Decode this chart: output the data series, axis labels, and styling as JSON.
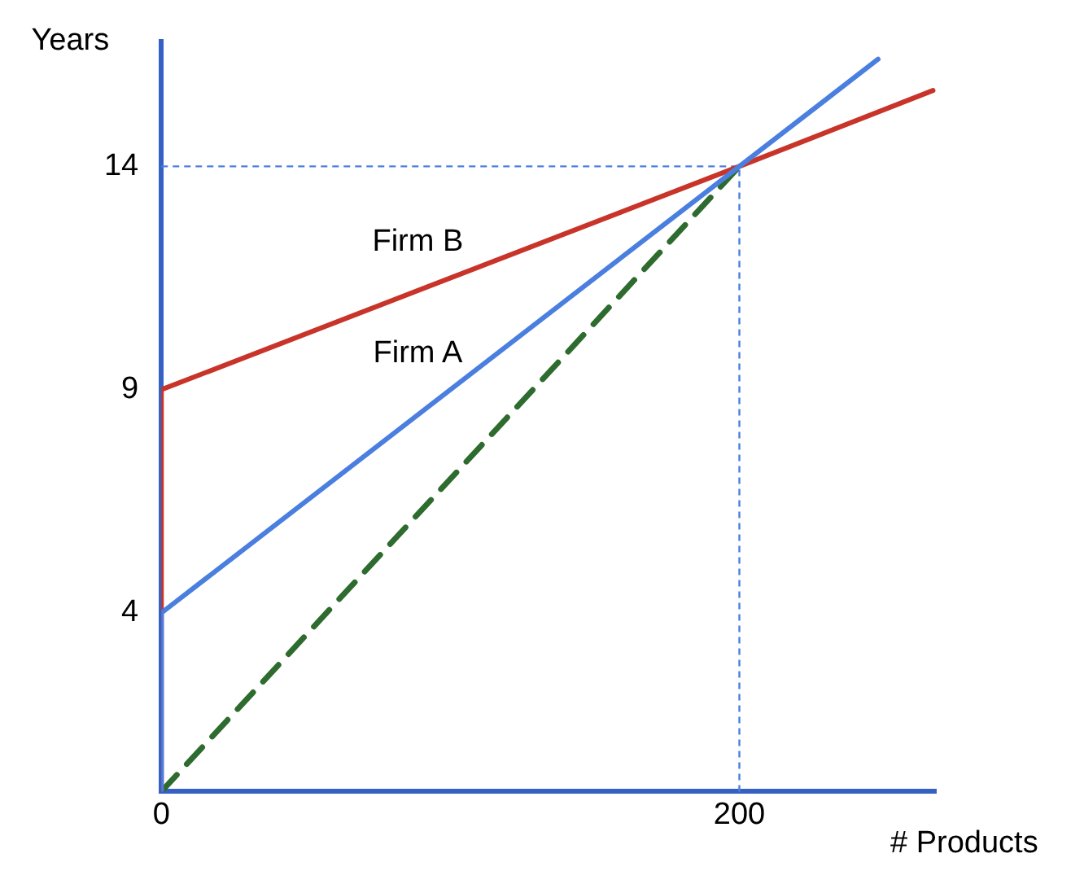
{
  "chart_data": {
    "type": "line",
    "xlabel": "# Products",
    "ylabel": "Years",
    "xlim": [
      0,
      268
    ],
    "ylim": [
      0,
      16.8
    ],
    "xticks": [
      0,
      200
    ],
    "yticks": [
      4,
      9,
      14
    ],
    "grid": false,
    "legend": false,
    "marker": "none",
    "ref_lines": [
      {
        "axis": "y",
        "value": 14,
        "color": "#4a7fe0",
        "line_style": "dashed"
      },
      {
        "axis": "x",
        "value": 200,
        "color": "#4a7fe0",
        "line_style": "dashed"
      }
    ],
    "series": [
      {
        "name": "Firm A",
        "color": "#4a7fe0",
        "x": [
          0,
          0,
          200,
          248
        ],
        "values": [
          0,
          4,
          14,
          16.4
        ]
      },
      {
        "name": "Firm B",
        "color": "#c8342a",
        "x": [
          0,
          0,
          200,
          267
        ],
        "values": [
          0,
          9,
          14,
          15.7
        ]
      },
      {
        "color": "#2e6b2e",
        "x": [
          0,
          200
        ],
        "values": [
          0,
          14
        ],
        "line_style": "dashed"
      }
    ]
  }
}
